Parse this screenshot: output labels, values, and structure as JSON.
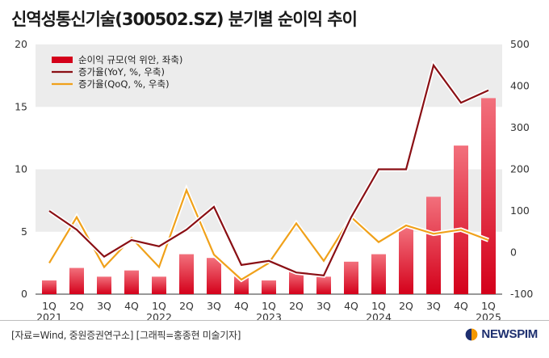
{
  "title": "신역성통신기술(300502.SZ) 분기별 순이익 추이",
  "footer": {
    "source": "[자료=Wind, 중원증권연구소] [그래픽=홍종현 미술기자]",
    "brand": "NEWSPIM"
  },
  "colors": {
    "bar_top": "#f2707c",
    "bar_bottom": "#d4001a",
    "yoy": "#8a0f14",
    "qoq": "#f0a11a",
    "band": "#ececec"
  },
  "chart_data": {
    "type": "bar",
    "title": "신역성통신기술(300502.SZ) 분기별 순이익 추이",
    "categories": [
      "1Q",
      "2Q",
      "3Q",
      "4Q",
      "1Q",
      "2Q",
      "3Q",
      "4Q",
      "1Q",
      "2Q",
      "3Q",
      "4Q",
      "1Q",
      "2Q",
      "3Q",
      "4Q",
      "1Q"
    ],
    "year_labels": [
      "2021",
      "",
      "",
      "",
      "2022",
      "",
      "",
      "",
      "2023",
      "",
      "",
      "",
      "2024",
      "",
      "",
      "",
      "2025"
    ],
    "left_axis": {
      "ylim": [
        0,
        20
      ],
      "ticks": [
        "0",
        "5",
        "10",
        "15",
        "20"
      ]
    },
    "right_axis": {
      "ylim": [
        -100,
        500
      ],
      "ticks": [
        "-100",
        "0",
        "100",
        "200",
        "300",
        "400",
        "500"
      ]
    },
    "grid": "alternating bands",
    "legend_placement": "top-left",
    "series": [
      {
        "name": "순이익 규모(억 위안, 좌축)",
        "type": "bar",
        "axis": "left",
        "values": [
          1.1,
          2.1,
          1.4,
          1.9,
          1.4,
          3.2,
          2.9,
          1.4,
          1.1,
          1.8,
          1.4,
          2.6,
          3.2,
          5.3,
          7.8,
          11.9,
          15.7
        ]
      },
      {
        "name": "증가율(YoY, %, 우축)",
        "type": "line",
        "axis": "right",
        "values": [
          100,
          55,
          -10,
          30,
          15,
          55,
          110,
          -30,
          -20,
          -48,
          -55,
          85,
          200,
          200,
          450,
          360,
          390
        ]
      },
      {
        "name": "증가율(QoQ, %, 우축)",
        "type": "line",
        "axis": "right",
        "values": [
          -25,
          85,
          -35,
          35,
          -35,
          150,
          -5,
          -65,
          -25,
          70,
          -20,
          85,
          25,
          65,
          45,
          55,
          30
        ]
      }
    ]
  }
}
